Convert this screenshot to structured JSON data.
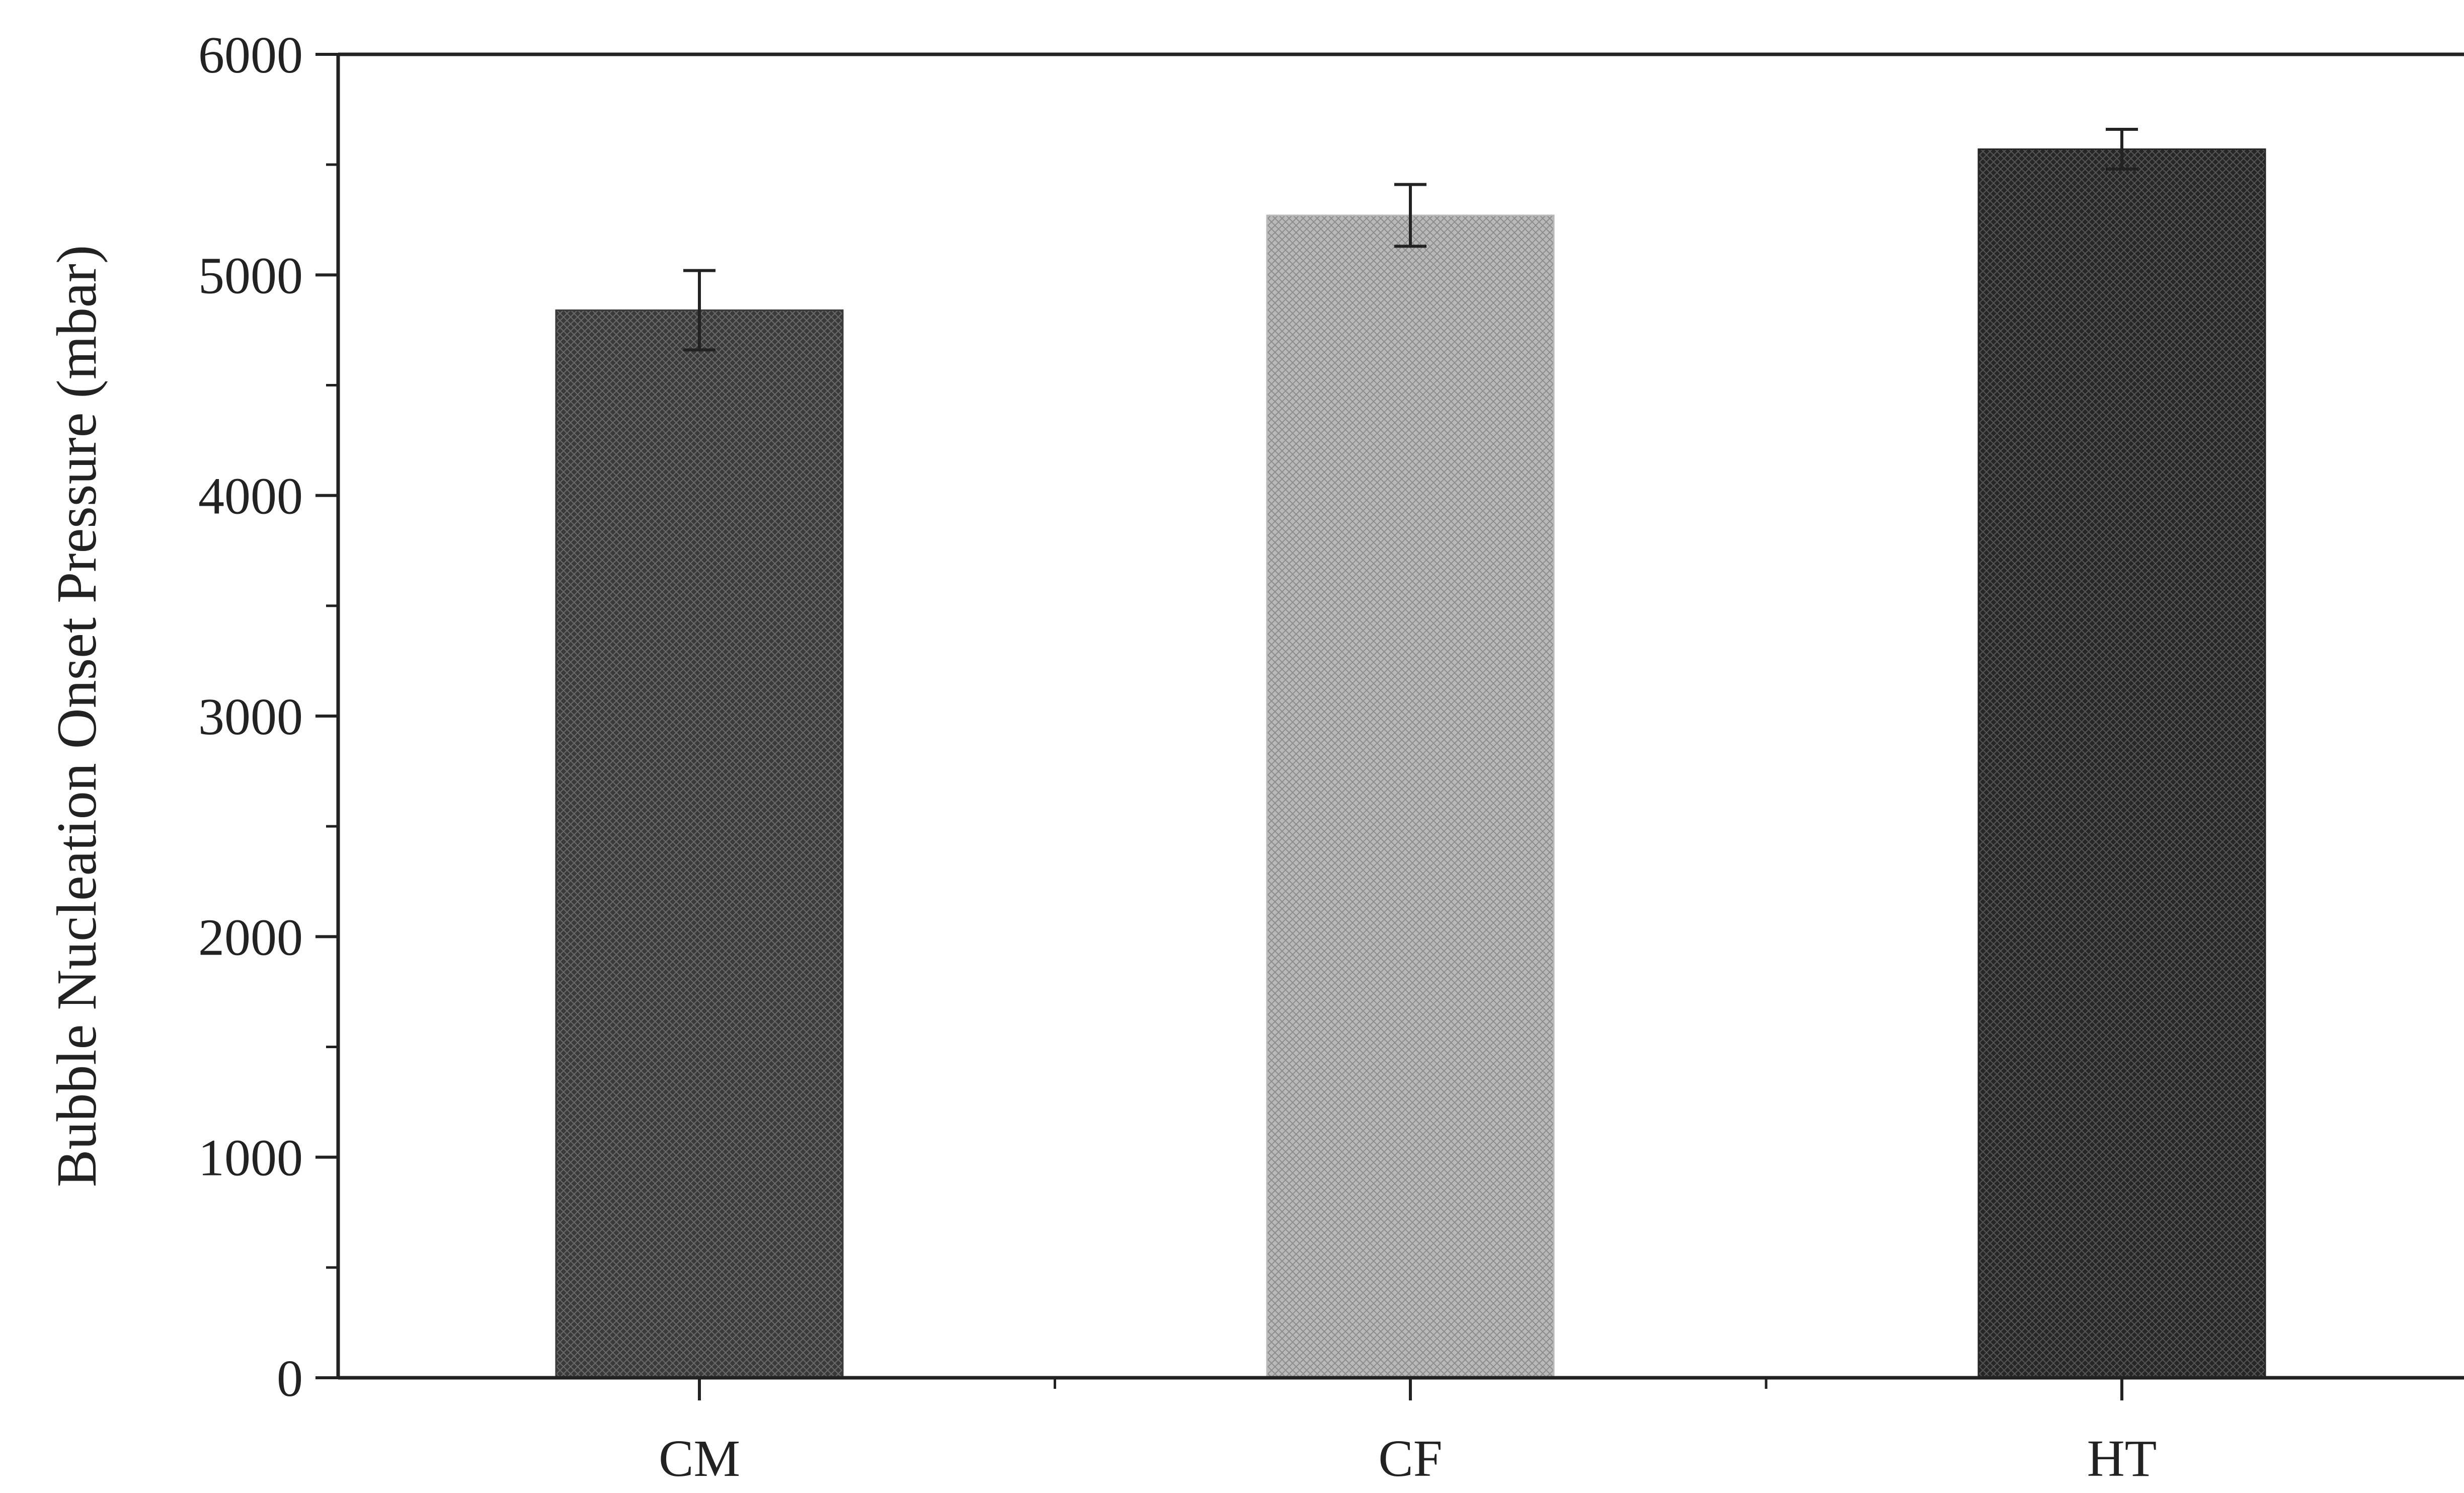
{
  "chart_data": {
    "type": "bar",
    "title": "",
    "xlabel": "",
    "ylabel": "Bubble Nucleation Onset Pressure (mbar)",
    "categories": [
      "CM",
      "CF",
      "HT"
    ],
    "values": [
      4840,
      5270,
      5570
    ],
    "errors": [
      180,
      140,
      90
    ],
    "ylim": [
      0,
      6000
    ],
    "yticks": [
      0,
      1000,
      2000,
      3000,
      4000,
      5000,
      6000
    ],
    "grid": false,
    "legend": "none",
    "bar_colors": [
      "#3a3a3a",
      "#b9b9b9",
      "#262626"
    ],
    "axis_color": "#222222"
  }
}
